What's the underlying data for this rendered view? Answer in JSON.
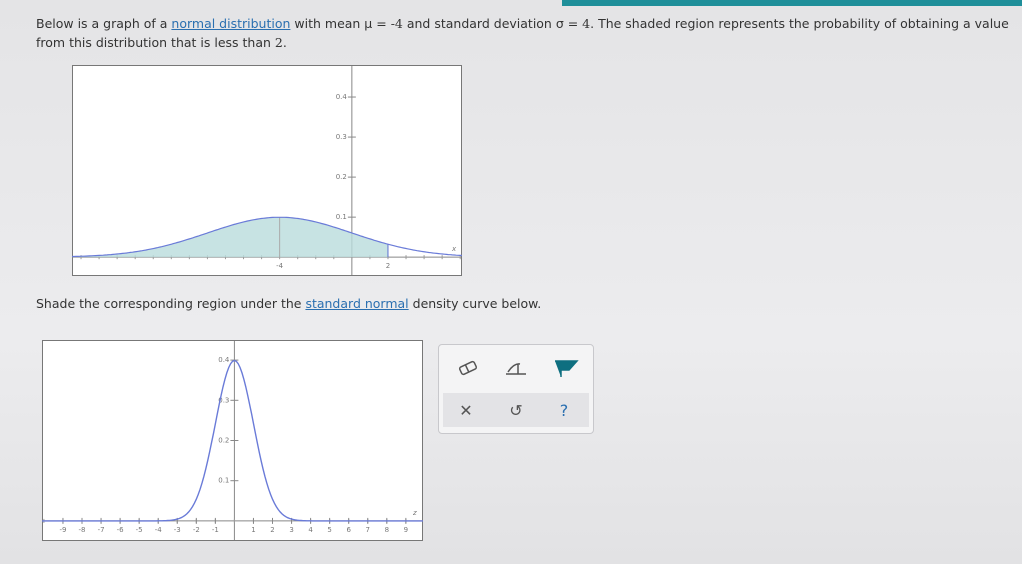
{
  "problem": {
    "intro": "Below is a graph of a ",
    "link": "normal distribution",
    "mean_text": " with mean μ = ",
    "mean": -4,
    "sd_text": " and standard deviation σ = ",
    "sd": 4,
    "rest": ". The shaded region represents the probability of obtaining a value from this distribution that is less than ",
    "cutoff": 2,
    "end": "."
  },
  "top_graph": {
    "xlim": [
      -15.5,
      6.1
    ],
    "ylim": [
      -0.047,
      0.48
    ],
    "yticks": [
      0.1,
      0.2,
      0.3,
      0.4
    ],
    "axis_label": "x"
  },
  "instruction": {
    "intro": "Shade the corresponding region under the ",
    "link": "standard normal",
    "rest": " density curve below."
  },
  "bottom_graph": {
    "xlim": [
      -10.1,
      9.9
    ],
    "ylim": [
      -0.05,
      0.45
    ],
    "xticks": [
      -9,
      -8,
      -7,
      -6,
      -5,
      -4,
      -3,
      -2,
      -1,
      1,
      2,
      3,
      4,
      5,
      6,
      7,
      8,
      9
    ],
    "yticks": [
      0.1,
      0.2,
      0.3,
      0.4
    ],
    "axis_label": "z"
  }
}
